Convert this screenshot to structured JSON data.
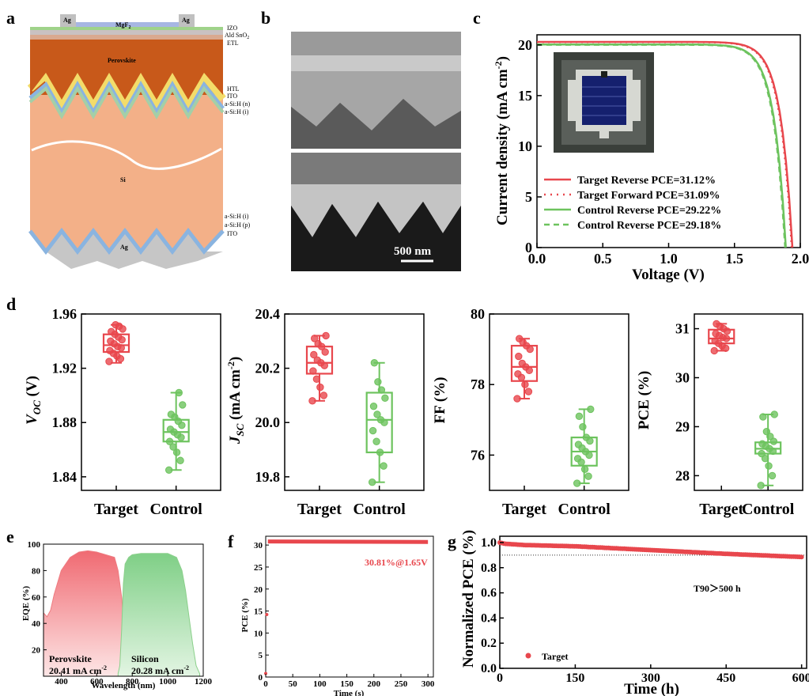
{
  "colors": {
    "target": "#e8474d",
    "control": "#6dc35e",
    "eqe_perovskite": "#ee7b80",
    "eqe_silicon": "#8bd08b"
  },
  "panel_letters": {
    "a": "a",
    "b": "b",
    "c": "c",
    "d": "d",
    "e": "e",
    "f": "f",
    "g": "g"
  },
  "panel_a": {
    "stack_labels": {
      "ag_left": "Ag",
      "mgf2": "MgF",
      "mgf2_sub": "2",
      "ag_right": "Ag",
      "izo": "IZO",
      "ald_sno2": "Ald SnO",
      "ald_sno2_sub": "2",
      "etl": "ETL",
      "perovskite": "Perovskite",
      "htl": "HTL",
      "ito_top": "ITO",
      "asi_n": "a-Si:H (n)",
      "asi_i_top": "a-Si:H (i)",
      "si": "Si",
      "asi_i_bottom": "a-Si:H (i)",
      "asi_p": "a-Si:H (p)",
      "ito_bottom": "ITO",
      "ag_bottom": "Ag"
    }
  },
  "panel_b": {
    "scale_bar_label": "500 nm"
  },
  "chart_data": [
    {
      "panel": "c",
      "type": "line",
      "xlabel": "Voltage (V)",
      "ylabel": "Current density (mA cm",
      "ylabel_sup": "-2",
      "ylabel_end": ")",
      "xlim": [
        0,
        2.0
      ],
      "ylim": [
        0,
        21
      ],
      "xticks": [
        "0.0",
        "0.5",
        "1.0",
        "1.5",
        "2.0"
      ],
      "yticks": [
        "0",
        "5",
        "10",
        "15",
        "20"
      ],
      "series": [
        {
          "name": "Target Reverse PCE=31.12%",
          "jsc": 20.3,
          "voc": 1.94,
          "style": "solid",
          "group": "target"
        },
        {
          "name": "Target Forward PCE=31.09%",
          "jsc": 20.28,
          "voc": 1.935,
          "style": "dotted",
          "group": "target"
        },
        {
          "name": "Control Reverse PCE=29.22%",
          "jsc": 20.05,
          "voc": 1.89,
          "style": "solid",
          "group": "control"
        },
        {
          "name": "Control Reverse PCE=29.18%",
          "jsc": 20.02,
          "voc": 1.885,
          "style": "dashed",
          "group": "control"
        }
      ]
    },
    {
      "panel": "d",
      "type": "box",
      "ylabel": "V",
      "ylabel_sub": "OC",
      "ylabel_end": " (V)",
      "yticks": [
        "1.84",
        "1.88",
        "1.92",
        "1.96"
      ],
      "ylim": [
        1.83,
        1.96
      ],
      "categories": [
        "Target",
        "Control"
      ],
      "boxes": [
        {
          "whisker_low": 1.924,
          "q1": 1.932,
          "median": 1.937,
          "q3": 1.945,
          "whisker_high": 1.952,
          "points": [
            1.925,
            1.927,
            1.929,
            1.931,
            1.933,
            1.935,
            1.936,
            1.938,
            1.94,
            1.941,
            1.943,
            1.945,
            1.947,
            1.949,
            1.951,
            1.952
          ]
        },
        {
          "whisker_low": 1.845,
          "q1": 1.866,
          "median": 1.873,
          "q3": 1.882,
          "whisker_high": 1.902,
          "points": [
            1.845,
            1.852,
            1.858,
            1.862,
            1.866,
            1.869,
            1.871,
            1.873,
            1.875,
            1.878,
            1.881,
            1.884,
            1.886,
            1.893,
            1.902
          ]
        }
      ]
    },
    {
      "panel": "d",
      "type": "box",
      "ylabel": "J",
      "ylabel_sub": "SC",
      "ylabel_end": " (mA cm",
      "ylabel_sup": "-2",
      "ylabel_close": ")",
      "yticks": [
        "19.8",
        "20.0",
        "20.2",
        "20.4"
      ],
      "ylim": [
        19.75,
        20.4
      ],
      "categories": [
        "Target",
        "Control"
      ],
      "boxes": [
        {
          "whisker_low": 20.08,
          "q1": 20.18,
          "median": 20.22,
          "q3": 20.28,
          "whisker_high": 20.32,
          "points": [
            20.08,
            20.1,
            20.13,
            20.16,
            20.19,
            20.21,
            20.22,
            20.23,
            20.25,
            20.26,
            20.28,
            20.29,
            20.31,
            20.32
          ]
        },
        {
          "whisker_low": 19.78,
          "q1": 19.89,
          "median": 20.01,
          "q3": 20.11,
          "whisker_high": 20.22,
          "points": [
            19.78,
            19.84,
            19.89,
            19.93,
            19.97,
            20.0,
            20.01,
            20.03,
            20.06,
            20.09,
            20.12,
            20.15,
            20.22
          ]
        }
      ]
    },
    {
      "panel": "d",
      "type": "box",
      "ylabel": "FF (%)",
      "yticks": [
        "76",
        "78",
        "80"
      ],
      "ylim": [
        75.0,
        80.0
      ],
      "categories": [
        "Target",
        "Control"
      ],
      "boxes": [
        {
          "whisker_low": 77.6,
          "q1": 78.1,
          "median": 78.5,
          "q3": 79.1,
          "whisker_high": 79.3,
          "points": [
            77.6,
            77.8,
            78.0,
            78.2,
            78.3,
            78.4,
            78.5,
            78.6,
            78.8,
            79.0,
            79.1,
            79.2,
            79.3
          ]
        },
        {
          "whisker_low": 75.2,
          "q1": 75.7,
          "median": 76.1,
          "q3": 76.5,
          "whisker_high": 77.3,
          "points": [
            75.2,
            75.4,
            75.6,
            75.8,
            75.9,
            76.0,
            76.1,
            76.2,
            76.3,
            76.4,
            76.5,
            76.8,
            77.1,
            77.3
          ]
        }
      ]
    },
    {
      "panel": "d",
      "type": "box",
      "ylabel": "PCE (%)",
      "yticks": [
        "28",
        "29",
        "30",
        "31"
      ],
      "ylim": [
        27.7,
        31.3
      ],
      "categories": [
        "Target",
        "Control"
      ],
      "boxes": [
        {
          "whisker_low": 30.55,
          "q1": 30.7,
          "median": 30.8,
          "q3": 30.98,
          "whisker_high": 31.1,
          "points": [
            30.55,
            30.6,
            30.65,
            30.7,
            30.75,
            30.8,
            30.82,
            30.86,
            30.9,
            30.95,
            31.0,
            31.05,
            31.1
          ]
        },
        {
          "whisker_low": 27.8,
          "q1": 28.45,
          "median": 28.55,
          "q3": 28.68,
          "whisker_high": 29.25,
          "points": [
            27.8,
            28.0,
            28.2,
            28.35,
            28.45,
            28.5,
            28.55,
            28.6,
            28.65,
            28.7,
            28.8,
            28.9,
            29.2,
            29.25
          ]
        }
      ]
    },
    {
      "panel": "e",
      "type": "area",
      "xlabel": "Wavelength (nm)",
      "ylabel": "EQE (%)",
      "xlim": [
        300,
        1200
      ],
      "ylim": [
        0,
        100
      ],
      "xticks": [
        "400",
        "600",
        "800",
        "1000",
        "1200"
      ],
      "yticks": [
        "20",
        "40",
        "60",
        "80",
        "100"
      ],
      "series": [
        {
          "name": "Perovskite",
          "value_label": "20.41 mA cm",
          "value_sup": "-2",
          "x": [
            300,
            320,
            340,
            360,
            400,
            450,
            500,
            550,
            600,
            650,
            700,
            720,
            740,
            750,
            760,
            770,
            780,
            790,
            800
          ],
          "y": [
            48,
            45,
            50,
            62,
            80,
            90,
            94,
            95,
            94,
            92,
            90,
            80,
            60,
            45,
            30,
            18,
            8,
            3,
            1
          ]
        },
        {
          "name": "Silicon",
          "value_label": "20.28 mA cm",
          "value_sup": "-2",
          "x": [
            720,
            730,
            740,
            750,
            760,
            780,
            800,
            850,
            900,
            950,
            1000,
            1050,
            1080,
            1100,
            1120,
            1140,
            1160,
            1180
          ],
          "y": [
            2,
            8,
            35,
            70,
            85,
            90,
            92,
            93,
            93,
            93,
            93,
            90,
            80,
            65,
            45,
            25,
            8,
            2
          ]
        }
      ]
    },
    {
      "panel": "f",
      "type": "line",
      "xlabel": "Time (s)",
      "ylabel": "PCE (%)",
      "xlim": [
        0,
        310
      ],
      "ylim": [
        0,
        32
      ],
      "xticks": [
        "0",
        "50",
        "100",
        "150",
        "200",
        "250",
        "300"
      ],
      "yticks": [
        "0",
        "5",
        "10",
        "15",
        "20",
        "25",
        "30"
      ],
      "annotation": "30.81%@1.65V",
      "series": [
        {
          "x": [
            0,
            2,
            4,
            300
          ],
          "y": [
            0.8,
            14.2,
            30.8,
            30.7
          ]
        }
      ]
    },
    {
      "panel": "g",
      "type": "scatter",
      "xlabel": "Time (h)",
      "ylabel": "Normalized PCE (%)",
      "xlim": [
        0,
        610
      ],
      "ylim": [
        0,
        1.05
      ],
      "xticks": [
        "0",
        "150",
        "300",
        "450",
        "600"
      ],
      "yticks": [
        "0.0",
        "0.2",
        "0.4",
        "0.6",
        "0.8",
        "1.0"
      ],
      "reference_line": 0.9,
      "annotation": "T90＞500 h",
      "series": [
        {
          "name": "Target",
          "x": [
            0,
            10,
            50,
            150,
            300,
            450,
            600
          ],
          "y": [
            1.0,
            0.99,
            0.98,
            0.97,
            0.94,
            0.91,
            0.885
          ]
        }
      ]
    }
  ]
}
